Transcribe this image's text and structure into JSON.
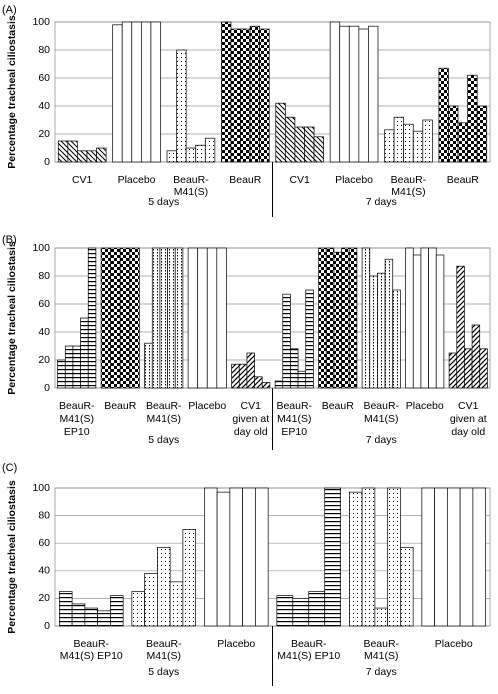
{
  "chart_data": [
    {
      "type": "bar",
      "panel": "(A)",
      "y_label": "Percentage tracheal ciliostasis",
      "ylim": [
        0,
        100
      ],
      "yticks": [
        0,
        20,
        40,
        60,
        80,
        100
      ],
      "grid": true,
      "periods": [
        "5 days",
        "7 days"
      ],
      "groups": [
        {
          "label": [
            "CV1"
          ],
          "period": 0,
          "pattern": "diag-back",
          "values": [
            15,
            15,
            8,
            8,
            10
          ]
        },
        {
          "label": [
            "Placebo"
          ],
          "period": 0,
          "pattern": "plain",
          "values": [
            98,
            100,
            100,
            100,
            100
          ]
        },
        {
          "label": [
            "BeauR-",
            "M41(S)"
          ],
          "period": 0,
          "pattern": "dots",
          "values": [
            8,
            80,
            10,
            12,
            17
          ]
        },
        {
          "label": [
            "BeauR"
          ],
          "period": 0,
          "pattern": "checker",
          "values": [
            100,
            95,
            95,
            97,
            95
          ]
        },
        {
          "label": [
            "CV1"
          ],
          "period": 1,
          "pattern": "diag-back",
          "values": [
            42,
            32,
            25,
            25,
            18
          ]
        },
        {
          "label": [
            "Placebo"
          ],
          "period": 1,
          "pattern": "plain",
          "values": [
            100,
            97,
            97,
            95,
            97
          ]
        },
        {
          "label": [
            "BeauR-",
            "M41(S)"
          ],
          "period": 1,
          "pattern": "dots",
          "values": [
            23,
            32,
            27,
            22,
            30
          ]
        },
        {
          "label": [
            "BeauR"
          ],
          "period": 1,
          "pattern": "checker",
          "values": [
            67,
            40,
            28,
            62,
            40
          ]
        }
      ]
    },
    {
      "type": "bar",
      "panel": "(B)",
      "y_label": "Percentage tracheal ciliostasis",
      "ylim": [
        0,
        100
      ],
      "yticks": [
        0,
        20,
        40,
        60,
        80,
        100
      ],
      "grid": true,
      "periods": [
        "5 days",
        "7 days"
      ],
      "groups": [
        {
          "label": [
            "BeauR-",
            "M41(S)",
            "EP10"
          ],
          "period": 0,
          "pattern": "hstripe",
          "values": [
            20,
            30,
            30,
            50,
            100
          ]
        },
        {
          "label": [
            "BeauR"
          ],
          "period": 0,
          "pattern": "checker",
          "values": [
            100,
            100,
            100,
            100
          ]
        },
        {
          "label": [
            "BeauR-",
            "M41(S)"
          ],
          "period": 0,
          "pattern": "vdots",
          "values": [
            32,
            100,
            100,
            100,
            100
          ]
        },
        {
          "label": [
            "Placebo"
          ],
          "period": 0,
          "pattern": "plain",
          "values": [
            100,
            100,
            100,
            100
          ]
        },
        {
          "label": [
            "CV1",
            "given at",
            "day old"
          ],
          "period": 0,
          "pattern": "diag-fwd",
          "values": [
            17,
            17,
            25,
            8,
            4
          ]
        },
        {
          "label": [
            "BeauR-",
            "M41(S)",
            "EP10"
          ],
          "period": 1,
          "pattern": "hstripe",
          "values": [
            5,
            67,
            28,
            12,
            70
          ]
        },
        {
          "label": [
            "BeauR"
          ],
          "period": 1,
          "pattern": "checker",
          "values": [
            100,
            100,
            97,
            100,
            100
          ]
        },
        {
          "label": [
            "BeauR-",
            "M41(S)"
          ],
          "period": 1,
          "pattern": "vdots",
          "values": [
            100,
            80,
            82,
            92,
            70
          ]
        },
        {
          "label": [
            "Placebo"
          ],
          "period": 1,
          "pattern": "plain",
          "values": [
            100,
            95,
            100,
            100,
            95
          ]
        },
        {
          "label": [
            "CV1",
            "given at",
            "day old"
          ],
          "period": 1,
          "pattern": "diag-fwd",
          "values": [
            25,
            87,
            28,
            45,
            28
          ]
        }
      ]
    },
    {
      "type": "bar",
      "panel": "(C)",
      "y_label": "Percentage tracheal ciliostasis",
      "ylim": [
        0,
        100
      ],
      "yticks": [
        0,
        20,
        40,
        60,
        80,
        100
      ],
      "grid": true,
      "periods": [
        "5 days",
        "7 days"
      ],
      "groups": [
        {
          "label": [
            "BeauR-",
            "M41(S) EP10"
          ],
          "period": 0,
          "pattern": "hstripe",
          "values": [
            25,
            16,
            13,
            11,
            22
          ]
        },
        {
          "label": [
            "BeauR-",
            "M41(S)"
          ],
          "period": 0,
          "pattern": "dots",
          "values": [
            25,
            38,
            57,
            32,
            70
          ]
        },
        {
          "label": [
            "Placebo"
          ],
          "period": 0,
          "pattern": "plain",
          "values": [
            100,
            97,
            100,
            100,
            100
          ]
        },
        {
          "label": [
            "BeauR-",
            "M41(S) EP10"
          ],
          "period": 1,
          "pattern": "hstripe",
          "values": [
            22,
            20,
            25,
            100
          ]
        },
        {
          "label": [
            "BeauR-",
            "M41(S)"
          ],
          "period": 1,
          "pattern": "dots",
          "values": [
            97,
            100,
            13,
            100,
            57
          ]
        },
        {
          "label": [
            "Placebo"
          ],
          "period": 1,
          "pattern": "plain",
          "values": [
            100,
            100,
            100,
            100,
            100
          ]
        }
      ]
    }
  ]
}
